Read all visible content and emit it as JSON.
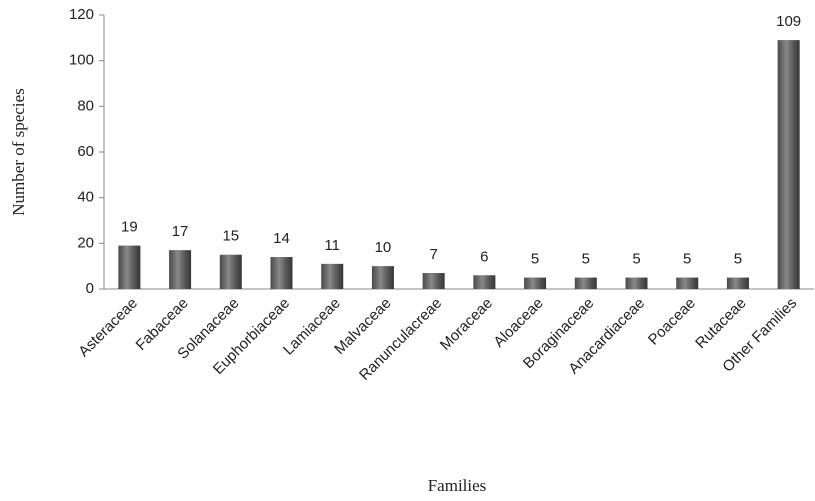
{
  "chart_data": {
    "type": "bar",
    "x_label": "Families",
    "y_label": "Number of species",
    "categories": [
      "Asteraceae",
      "Fabaceae",
      "Solanaceae",
      "Euphorbiaceae",
      "Lamiaceae",
      "Malvaceae",
      "Ranunculacreae",
      "Moraceae",
      "Aloaceae",
      "Boraginaceae",
      "Anacardiaceae",
      "Poaceae",
      "Rutaceae",
      "Other Families"
    ],
    "values": [
      19,
      17,
      15,
      14,
      11,
      10,
      7,
      6,
      5,
      5,
      5,
      5,
      5,
      109
    ],
    "color": "#4a4a4a",
    "ylim": [
      0,
      120
    ],
    "yticks": [
      0,
      20,
      40,
      60,
      80,
      100,
      120
    ],
    "grid": false
  }
}
